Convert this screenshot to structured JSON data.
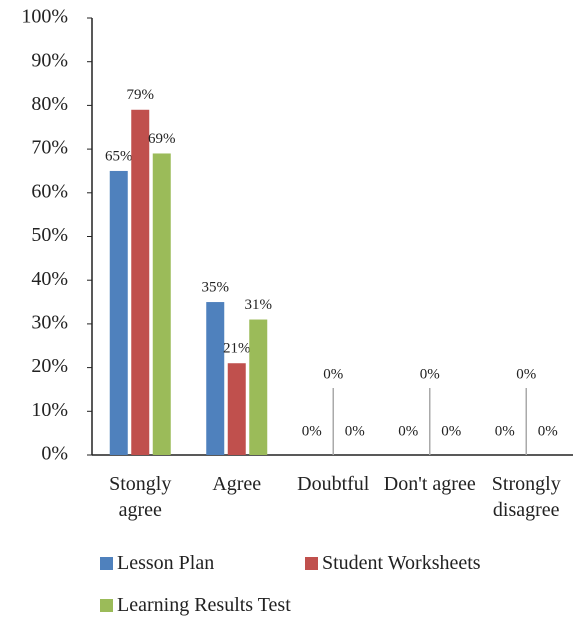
{
  "chart_data": {
    "type": "bar",
    "categories": [
      "Stongly agree",
      "Agree",
      "Doubtful",
      "Don't agree",
      "Strongly disagree"
    ],
    "series": [
      {
        "name": "Lesson Plan",
        "color": "#4f81bd",
        "values": [
          65,
          35,
          0,
          0,
          0
        ],
        "value_labels": [
          "65%",
          "35%",
          "0%",
          "0%",
          "0%"
        ]
      },
      {
        "name": "Student Worksheets",
        "color": "#c0504d",
        "values": [
          79,
          21,
          0,
          0,
          0
        ],
        "value_labels": [
          "79%",
          "21%",
          "0%",
          "0%",
          "0%"
        ]
      },
      {
        "name": "Learning Results Test",
        "color": "#9bbb59",
        "values": [
          69,
          31,
          0,
          0,
          0
        ],
        "value_labels": [
          "69%",
          "31%",
          "0%",
          "0%",
          "0%"
        ]
      }
    ],
    "ylim": [
      0,
      100
    ],
    "yticks": [
      {
        "value": 0,
        "label": "0%"
      },
      {
        "value": 10,
        "label": "10%"
      },
      {
        "value": 20,
        "label": "20%"
      },
      {
        "value": 30,
        "label": "30%"
      },
      {
        "value": 40,
        "label": "40%"
      },
      {
        "value": 50,
        "label": "50%"
      },
      {
        "value": 60,
        "label": "60%"
      },
      {
        "value": 70,
        "label": "70%"
      },
      {
        "value": 80,
        "label": "80%"
      },
      {
        "value": 90,
        "label": "90%"
      },
      {
        "value": 100,
        "label": "100%"
      }
    ],
    "grid": false,
    "legend": "bottom"
  }
}
